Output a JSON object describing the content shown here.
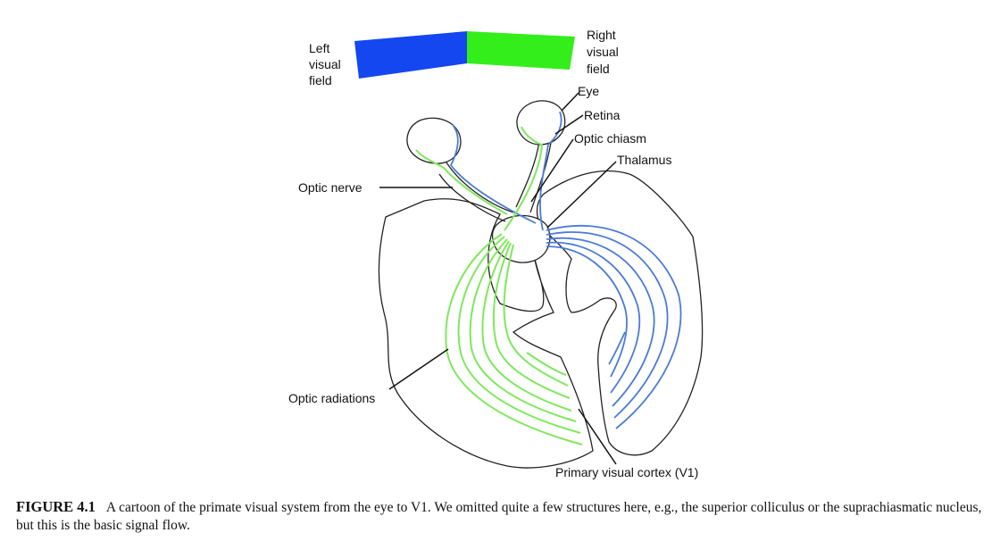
{
  "figure": {
    "labels": {
      "left_visual_field": [
        "Left",
        "visual",
        "field"
      ],
      "right_visual_field": [
        "Right",
        "visual",
        "field"
      ],
      "eye": "Eye",
      "retina": "Retina",
      "optic_chiasm": "Optic chiasm",
      "thalamus": "Thalamus",
      "optic_nerve": "Optic nerve",
      "optic_radiations": "Optic radiations",
      "primary_visual_cortex": "Primary visual cortex (V1)"
    },
    "colors": {
      "left_field": "#1447f0",
      "right_field": "#33ee1a",
      "blue_pathway": "#4a7bd6",
      "green_pathway": "#7ee85a",
      "outline": "#222222"
    }
  },
  "caption": {
    "label": "FIGURE 4.1",
    "text": "A cartoon of the primate visual system from the eye to V1. We omitted quite a few structures here, e.g., the superior colliculus or the suprachiasmatic nucleus, but this is the basic signal flow."
  }
}
